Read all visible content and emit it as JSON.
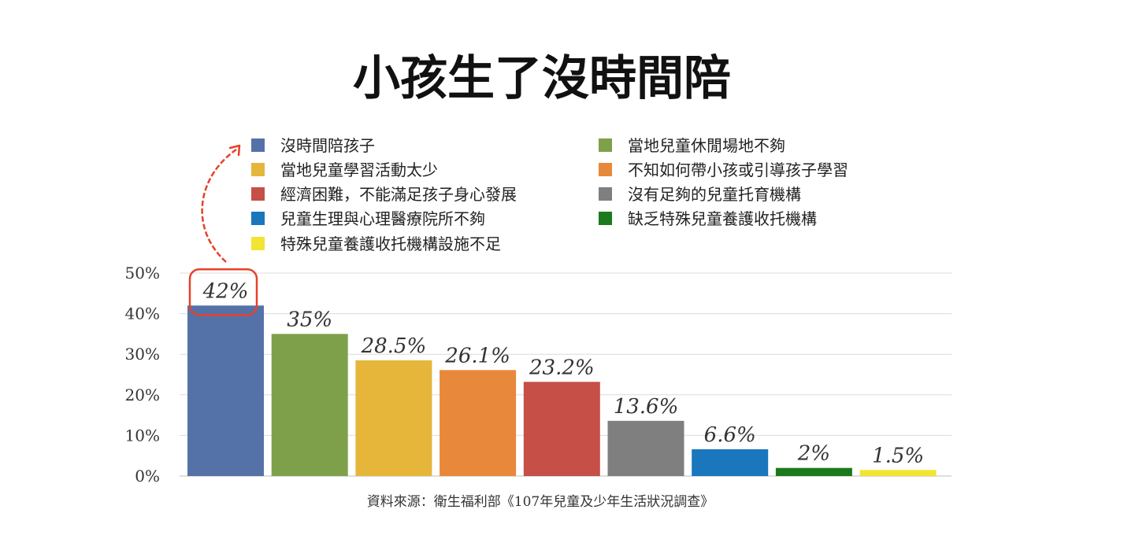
{
  "chart_data": {
    "type": "bar",
    "title": "小孩生了沒時間陪",
    "source": "資料來源：衛生福利部《107年兒童及少年生活狀況調查》",
    "ylim": [
      0,
      50
    ],
    "yticks": [
      "0%",
      "10%",
      "20%",
      "30%",
      "40%",
      "50%"
    ],
    "grid": true,
    "legend_position": "top",
    "categories": [
      "沒時間陪孩子",
      "當地兒童休閒場地不夠",
      "當地兒童學習活動太少",
      "不知如何帶小孩或引導孩子學習",
      "經濟困難，不能滿足孩子身心發展",
      "沒有足夠的兒童托育機構",
      "兒童生理與心理醫療院所不夠",
      "缺乏特殊兒童養護收托機構",
      "特殊兒童養護收托機構設施不足"
    ],
    "values": [
      42,
      35,
      28.5,
      26.1,
      23.2,
      13.6,
      6.6,
      2,
      1.5
    ],
    "value_labels": [
      "42%",
      "35%",
      "28.5%",
      "26.1%",
      "23.2%",
      "13.6%",
      "6.6%",
      "2%",
      "1.5%"
    ],
    "colors": [
      "#5572a8",
      "#7fa04b",
      "#e5b63a",
      "#e8883a",
      "#c64f47",
      "#7f7f7f",
      "#1a76bd",
      "#1c7a1c",
      "#f2e433"
    ],
    "highlight_index": 0,
    "highlight_color": "#e8402a"
  }
}
